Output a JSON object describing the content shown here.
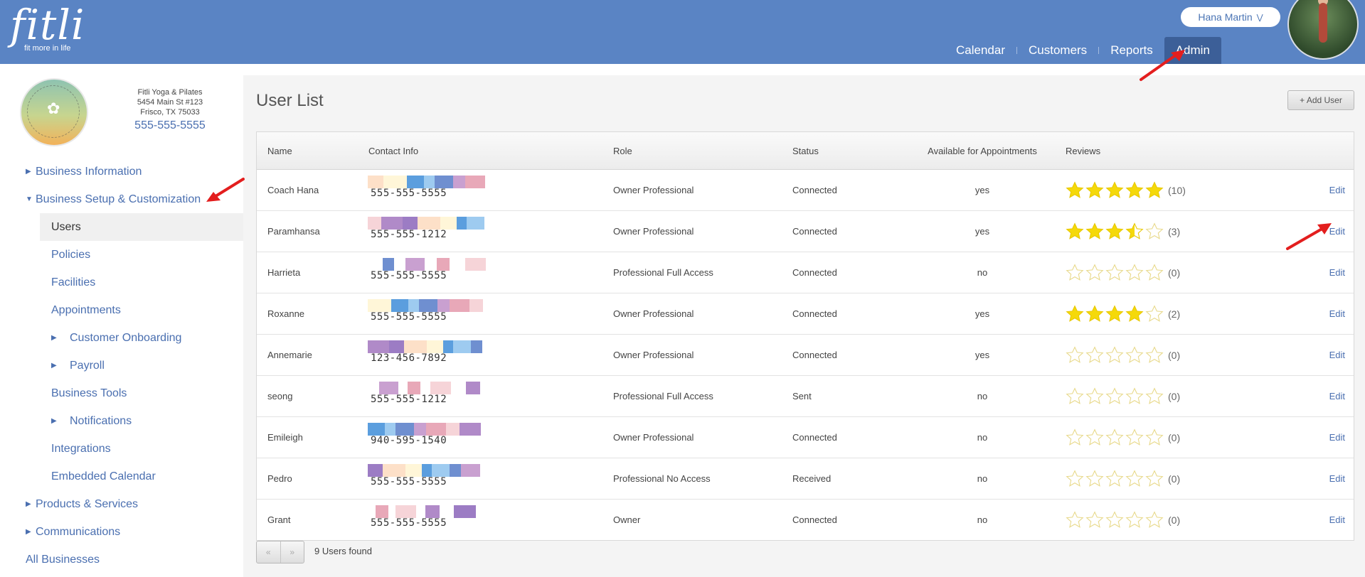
{
  "header": {
    "logo_word": "fitli",
    "logo_tagline": "fit more in life",
    "user_name": "Hana Martin",
    "nav": [
      {
        "label": "Calendar",
        "active": false
      },
      {
        "label": "Customers",
        "active": false
      },
      {
        "label": "Reports",
        "active": false
      },
      {
        "label": "Admin",
        "active": true
      }
    ]
  },
  "business": {
    "name": "Fitli Yoga & Pilates",
    "address1": "5454 Main St #123",
    "address2": "Frisco, TX 75033",
    "phone": "555-555-5555"
  },
  "sidebar": {
    "items": [
      {
        "label": "Business Information",
        "level": 0,
        "caret": "right"
      },
      {
        "label": "Business Setup & Customization",
        "level": 0,
        "caret": "down"
      },
      {
        "label": "Users",
        "level": 1,
        "active": true
      },
      {
        "label": "Policies",
        "level": 1
      },
      {
        "label": "Facilities",
        "level": 1
      },
      {
        "label": "Appointments",
        "level": 1
      },
      {
        "label": "Customer Onboarding",
        "level": 1,
        "caret": "right"
      },
      {
        "label": "Payroll",
        "level": 1,
        "caret": "right"
      },
      {
        "label": "Business Tools",
        "level": 1
      },
      {
        "label": "Notifications",
        "level": 1,
        "caret": "right"
      },
      {
        "label": "Integrations",
        "level": 1
      },
      {
        "label": "Embedded Calendar",
        "level": 1
      },
      {
        "label": "Products & Services",
        "level": 0,
        "caret": "right"
      },
      {
        "label": "Communications",
        "level": 0,
        "caret": "right"
      },
      {
        "label": "All Businesses",
        "level": 0
      }
    ]
  },
  "main": {
    "title": "User List",
    "add_button": "+ Add User",
    "columns": {
      "name": "Name",
      "contact": "Contact Info",
      "role": "Role",
      "status": "Status",
      "available": "Available for Appointments",
      "reviews": "Reviews"
    },
    "edit_label": "Edit",
    "rows": [
      {
        "name": "Coach Hana",
        "phone": "555-555-5555",
        "role": "Owner Professional",
        "status": "Connected",
        "available": "yes",
        "rating": 5,
        "reviews": "(10)"
      },
      {
        "name": "Paramhansa",
        "phone": "555-555-1212",
        "role": "Owner Professional",
        "status": "Connected",
        "available": "yes",
        "rating": 3.5,
        "reviews": "(3)"
      },
      {
        "name": "Harrieta",
        "phone": "555-555-5555",
        "role": "Professional Full Access",
        "status": "Connected",
        "available": "no",
        "rating": 0,
        "reviews": "(0)"
      },
      {
        "name": "Roxanne",
        "phone": "555-555-5555",
        "role": "Owner Professional",
        "status": "Connected",
        "available": "yes",
        "rating": 4,
        "reviews": "(2)"
      },
      {
        "name": "Annemarie",
        "phone": "123-456-7892",
        "role": "Owner Professional",
        "status": "Connected",
        "available": "yes",
        "rating": 0,
        "reviews": "(0)"
      },
      {
        "name": "seong",
        "phone": "555-555-1212",
        "role": "Professional Full Access",
        "status": "Sent",
        "available": "no",
        "rating": 0,
        "reviews": "(0)"
      },
      {
        "name": "Emileigh",
        "phone": "940-595-1540",
        "role": "Owner Professional",
        "status": "Connected",
        "available": "no",
        "rating": 0,
        "reviews": "(0)"
      },
      {
        "name": "Pedro",
        "phone": "555-555-5555",
        "role": "Professional No Access",
        "status": "Received",
        "available": "no",
        "rating": 0,
        "reviews": "(0)"
      },
      {
        "name": "Grant",
        "phone": "555-555-5555",
        "role": "Owner",
        "status": "Connected",
        "available": "no",
        "rating": 0,
        "reviews": "(0)"
      }
    ],
    "pager_prev": "«",
    "pager_next": "»",
    "found_text": "9 Users found"
  },
  "colors": {
    "header_bg": "#5a84c4",
    "nav_active": "#3c5f98",
    "link": "#4a6fb0",
    "star_filled": "#f5d90a",
    "star_empty": "#e8d98a",
    "arrow": "#e31e1e",
    "swatch_palette": [
      "#b08ac8",
      "#9c7cc4",
      "#fde0c8",
      "#fff6d8",
      "#5b9ede",
      "#9ecbf0",
      "#6f8fd0",
      "#c9a0d0",
      "#e8a8b8",
      "#f6d4d8"
    ]
  }
}
